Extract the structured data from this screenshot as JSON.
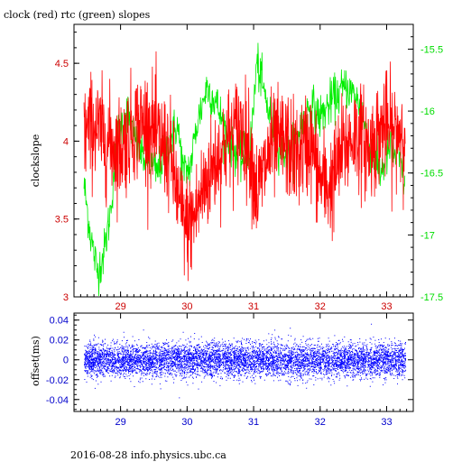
{
  "title": "clock (red) rtc (green) slopes",
  "footer": "2016-08-28 info.physics.ubc.ca",
  "colors": {
    "clock": "#ff0000",
    "rtc": "#00ee00",
    "offset": "#0000ff",
    "left_axis": "#cc0000",
    "right_axis": "#00dd00",
    "bottom_axis": "#0000cc",
    "frame": "#000000"
  },
  "chart_data": [
    {
      "type": "line",
      "title": "clock (red) rtc (green) slopes",
      "ylabel": "clockslope",
      "xlabel": "",
      "xlim": [
        28.3,
        33.4
      ],
      "ylim": [
        3.0,
        4.75
      ],
      "y2lim": [
        -17.5,
        -15.3
      ],
      "grid": false,
      "x_ticks": [
        "29",
        "30",
        "31",
        "32",
        "33"
      ],
      "y_ticks": [
        "3",
        "3.5",
        "4",
        "4.5"
      ],
      "y2_ticks": [
        "-15.5",
        "-16",
        "-16.5",
        "-17",
        "-17.5"
      ],
      "series": [
        {
          "name": "clock",
          "axis": "left",
          "x": [
            28.45,
            28.6,
            28.8,
            29.0,
            29.2,
            29.4,
            29.6,
            29.75,
            29.9,
            30.0,
            30.1,
            30.25,
            30.4,
            30.6,
            30.8,
            30.95,
            31.05,
            31.25,
            31.45,
            31.65,
            31.85,
            32.0,
            32.15,
            32.35,
            32.55,
            32.75,
            32.95,
            33.1,
            33.28
          ],
          "y": [
            4.05,
            4.1,
            4.0,
            3.95,
            4.1,
            4.12,
            4.0,
            3.9,
            3.55,
            3.45,
            3.5,
            3.7,
            3.85,
            4.0,
            4.1,
            3.95,
            3.65,
            3.95,
            4.0,
            3.9,
            4.0,
            3.75,
            3.7,
            3.95,
            4.05,
            3.95,
            4.1,
            4.05,
            4.1
          ]
        },
        {
          "name": "rtc",
          "axis": "right",
          "x": [
            28.45,
            28.55,
            28.65,
            28.75,
            28.85,
            28.95,
            29.1,
            29.25,
            29.4,
            29.55,
            29.7,
            29.85,
            29.95,
            30.05,
            30.15,
            30.3,
            30.45,
            30.6,
            30.8,
            30.95,
            31.05,
            31.2,
            31.4,
            31.55,
            31.7,
            31.85,
            32.0,
            32.2,
            32.4,
            32.6,
            32.75,
            32.9,
            33.05,
            33.2,
            33.28
          ],
          "y": [
            -16.6,
            -17.0,
            -17.3,
            -17.15,
            -16.8,
            -16.2,
            -16.0,
            -16.3,
            -16.4,
            -16.5,
            -16.3,
            -16.1,
            -16.5,
            -16.45,
            -16.1,
            -15.8,
            -15.95,
            -16.2,
            -16.4,
            -16.3,
            -15.6,
            -15.95,
            -16.3,
            -16.35,
            -16.15,
            -15.95,
            -16.05,
            -15.9,
            -15.8,
            -15.95,
            -16.3,
            -16.5,
            -16.3,
            -16.4,
            -16.6
          ]
        }
      ]
    },
    {
      "type": "scatter",
      "title": "",
      "ylabel": "offset(ms)",
      "xlabel": "",
      "xlim": [
        28.3,
        33.4
      ],
      "ylim": [
        -0.052,
        0.047
      ],
      "grid": false,
      "x_ticks": [
        "29",
        "30",
        "31",
        "32",
        "33"
      ],
      "y_ticks": [
        "0.04",
        "0.02",
        "0",
        "-0.02",
        "-0.04"
      ],
      "series": [
        {
          "name": "offset",
          "x_range": [
            28.45,
            33.28
          ],
          "center": 0,
          "typical_spread": [
            -0.02,
            0.02
          ],
          "extreme_range": [
            -0.04,
            0.04
          ],
          "point_count": 9000
        }
      ]
    }
  ]
}
